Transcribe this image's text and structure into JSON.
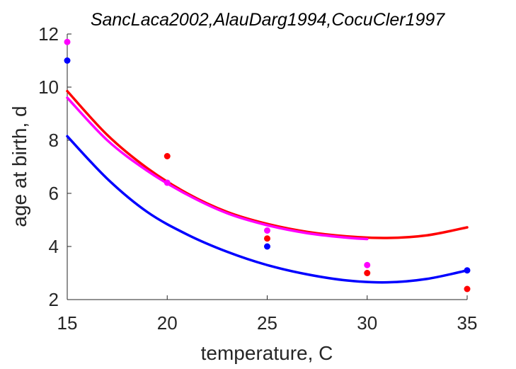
{
  "chart_data": {
    "type": "scatter",
    "title": "SancLaca2002,AlauDarg1994,CocuCler1997",
    "xlabel": "temperature, C",
    "ylabel": "age at birth, d",
    "xlim": [
      15,
      35
    ],
    "ylim": [
      2,
      12
    ],
    "xticks": [
      "15",
      "20",
      "25",
      "30",
      "35"
    ],
    "yticks": [
      "2",
      "4",
      "6",
      "8",
      "10",
      "12"
    ],
    "grid": false,
    "legend": "none",
    "series": [
      {
        "color": "#ff0000",
        "points": {
          "x": [
            20,
            25,
            30,
            35
          ],
          "y": [
            7.4,
            4.3,
            3.0,
            2.4
          ]
        },
        "curve": {
          "x": [
            15,
            17,
            19,
            21,
            23,
            25,
            27,
            29,
            31,
            33,
            35
          ],
          "y": [
            9.85,
            8.2,
            6.95,
            6.0,
            5.3,
            4.85,
            4.55,
            4.38,
            4.32,
            4.42,
            4.72
          ]
        }
      },
      {
        "color": "#0000ff",
        "points": {
          "x": [
            15,
            25,
            35
          ],
          "y": [
            11.0,
            4.0,
            3.1
          ]
        },
        "curve": {
          "x": [
            15,
            17,
            19,
            21,
            23,
            25,
            27,
            29,
            31,
            33,
            35
          ],
          "y": [
            8.15,
            6.55,
            5.3,
            4.45,
            3.8,
            3.3,
            2.95,
            2.72,
            2.65,
            2.78,
            3.1
          ]
        }
      },
      {
        "color": "#ff00ff",
        "points": {
          "x": [
            15,
            20,
            25,
            30
          ],
          "y": [
            11.7,
            6.4,
            4.6,
            3.3
          ]
        },
        "curve": {
          "x": [
            15,
            17,
            19,
            21,
            23,
            25,
            27,
            29,
            30
          ],
          "y": [
            9.6,
            8.0,
            6.85,
            5.95,
            5.25,
            4.8,
            4.5,
            4.33,
            4.28
          ]
        }
      }
    ]
  }
}
